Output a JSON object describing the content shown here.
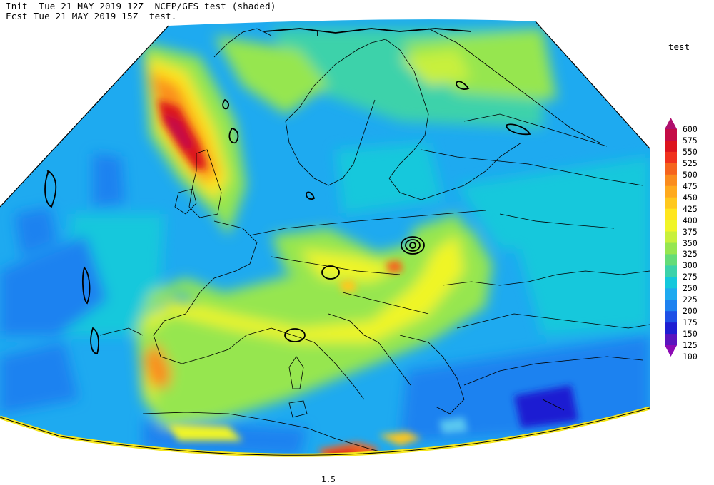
{
  "header": {
    "line1": "Init  Tue 21 MAY 2019 12Z  NCEP/GFS test (shaded)",
    "line2": "Fcst Tue 21 MAY 2019 15Z  test."
  },
  "legend": {
    "title": "test",
    "levels": [
      {
        "value": "600",
        "color": "#b0106e"
      },
      {
        "value": "575",
        "color": "#c40c46"
      },
      {
        "value": "550",
        "color": "#dc141e"
      },
      {
        "value": "525",
        "color": "#f0321e"
      },
      {
        "value": "500",
        "color": "#f5641e"
      },
      {
        "value": "475",
        "color": "#fa8c1e"
      },
      {
        "value": "450",
        "color": "#ffaa1e"
      },
      {
        "value": "425",
        "color": "#ffc81e"
      },
      {
        "value": "400",
        "color": "#ffe61e"
      },
      {
        "value": "375",
        "color": "#f0f528"
      },
      {
        "value": "350",
        "color": "#c8f03c"
      },
      {
        "value": "325",
        "color": "#96e650"
      },
      {
        "value": "300",
        "color": "#64dc78"
      },
      {
        "value": "275",
        "color": "#3cd2aa"
      },
      {
        "value": "250",
        "color": "#14c8dc"
      },
      {
        "value": "225",
        "color": "#1eaaf0"
      },
      {
        "value": "200",
        "color": "#1e82f0"
      },
      {
        "value": "175",
        "color": "#1e50e6"
      },
      {
        "value": "150",
        "color": "#1e1ed2"
      },
      {
        "value": "125",
        "color": "#5a14be"
      },
      {
        "value": "100",
        "color": "#8c0ab4"
      }
    ]
  },
  "contour_labels": {
    "north": "1",
    "west": "1",
    "south": "1.5"
  }
}
